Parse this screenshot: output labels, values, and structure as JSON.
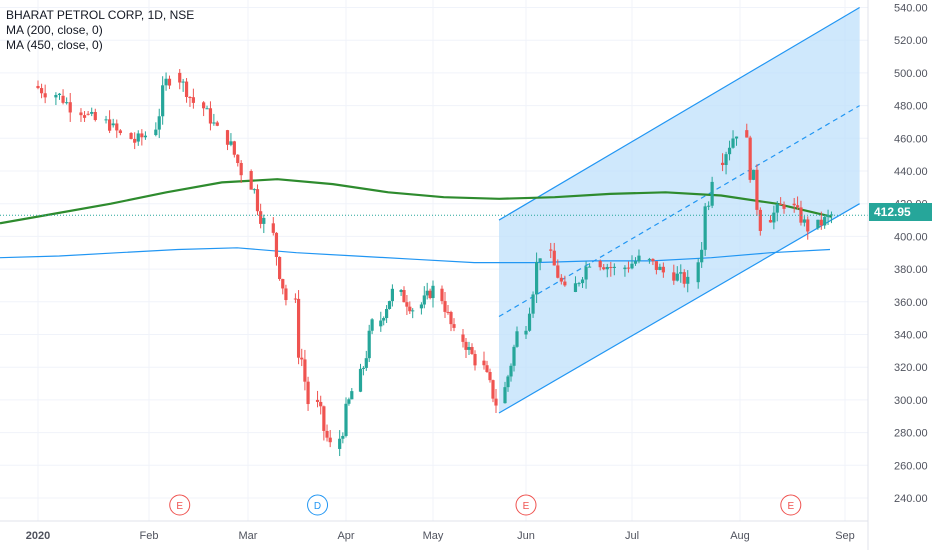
{
  "legend": {
    "title": "BHARAT PETROL CORP, 1D, NSE",
    "ma1": "MA (200, close, 0)",
    "ma2": "MA (450, close, 0)"
  },
  "price_tag": "412.95",
  "colors": {
    "up": "#26a69a",
    "down": "#ef5350",
    "ma200": "#2e8b2e",
    "ma450": "#2196f3",
    "channel": "#2196f3",
    "channel_fill": "#bbdefb",
    "price_line": "#26a69a"
  },
  "chart_data": {
    "type": "candlestick",
    "title": "BHARAT PETROL CORP, 1D, NSE",
    "y_ticks": [
      "240.00",
      "260.00",
      "280.00",
      "300.00",
      "320.00",
      "340.00",
      "360.00",
      "380.00",
      "400.00",
      "420.00",
      "440.00",
      "460.00",
      "480.00",
      "500.00",
      "520.00",
      "540.00"
    ],
    "x_ticks": [
      "2020",
      "Feb",
      "Mar",
      "Apr",
      "May",
      "Jun",
      "Jul",
      "Aug",
      "Sep"
    ],
    "ylim": [
      228,
      540
    ],
    "last_price": 412.95,
    "candles_approx": [
      {
        "date": "2020-01-01",
        "o": 492,
        "h": 497,
        "l": 478,
        "c": 486
      },
      {
        "date": "2020-01-08",
        "o": 486,
        "h": 492,
        "l": 470,
        "c": 475
      },
      {
        "date": "2020-01-15",
        "o": 475,
        "h": 480,
        "l": 462,
        "c": 468
      },
      {
        "date": "2020-01-22",
        "o": 468,
        "h": 472,
        "l": 452,
        "c": 458
      },
      {
        "date": "2020-01-29",
        "o": 458,
        "h": 466,
        "l": 448,
        "c": 462
      },
      {
        "date": "2020-02-03",
        "o": 462,
        "h": 510,
        "l": 445,
        "c": 500
      },
      {
        "date": "2020-02-10",
        "o": 500,
        "h": 505,
        "l": 478,
        "c": 482
      },
      {
        "date": "2020-02-17",
        "o": 482,
        "h": 486,
        "l": 460,
        "c": 465
      },
      {
        "date": "2020-02-24",
        "o": 465,
        "h": 470,
        "l": 432,
        "c": 440
      },
      {
        "date": "2020-03-02",
        "o": 440,
        "h": 455,
        "l": 400,
        "c": 408
      },
      {
        "date": "2020-03-09",
        "o": 408,
        "h": 412,
        "l": 350,
        "c": 362
      },
      {
        "date": "2020-03-16",
        "o": 362,
        "h": 395,
        "l": 275,
        "c": 300
      },
      {
        "date": "2020-03-23",
        "o": 300,
        "h": 318,
        "l": 252,
        "c": 270
      },
      {
        "date": "2020-03-30",
        "o": 270,
        "h": 312,
        "l": 258,
        "c": 305
      },
      {
        "date": "2020-04-06",
        "o": 305,
        "h": 350,
        "l": 298,
        "c": 345
      },
      {
        "date": "2020-04-13",
        "o": 345,
        "h": 372,
        "l": 340,
        "c": 366
      },
      {
        "date": "2020-04-20",
        "o": 366,
        "h": 372,
        "l": 350,
        "c": 356
      },
      {
        "date": "2020-04-27",
        "o": 356,
        "h": 373,
        "l": 352,
        "c": 368
      },
      {
        "date": "2020-05-04",
        "o": 368,
        "h": 370,
        "l": 335,
        "c": 340
      },
      {
        "date": "2020-05-11",
        "o": 340,
        "h": 348,
        "l": 318,
        "c": 324
      },
      {
        "date": "2020-05-18",
        "o": 324,
        "h": 330,
        "l": 292,
        "c": 298
      },
      {
        "date": "2020-05-25",
        "o": 298,
        "h": 345,
        "l": 296,
        "c": 340
      },
      {
        "date": "2020-06-01",
        "o": 340,
        "h": 400,
        "l": 335,
        "c": 392
      },
      {
        "date": "2020-06-08",
        "o": 392,
        "h": 396,
        "l": 360,
        "c": 366
      },
      {
        "date": "2020-06-15",
        "o": 366,
        "h": 390,
        "l": 356,
        "c": 385
      },
      {
        "date": "2020-06-22",
        "o": 385,
        "h": 395,
        "l": 372,
        "c": 380
      },
      {
        "date": "2020-06-29",
        "o": 380,
        "h": 392,
        "l": 370,
        "c": 386
      },
      {
        "date": "2020-07-06",
        "o": 386,
        "h": 392,
        "l": 372,
        "c": 378
      },
      {
        "date": "2020-07-13",
        "o": 378,
        "h": 384,
        "l": 360,
        "c": 372
      },
      {
        "date": "2020-07-20",
        "o": 372,
        "h": 482,
        "l": 368,
        "c": 445
      },
      {
        "date": "2020-07-27",
        "o": 445,
        "h": 478,
        "l": 435,
        "c": 465
      },
      {
        "date": "2020-08-03",
        "o": 465,
        "h": 470,
        "l": 400,
        "c": 410
      },
      {
        "date": "2020-08-10",
        "o": 410,
        "h": 432,
        "l": 398,
        "c": 420
      },
      {
        "date": "2020-08-17",
        "o": 420,
        "h": 425,
        "l": 398,
        "c": 405
      },
      {
        "date": "2020-08-24",
        "o": 405,
        "h": 418,
        "l": 404,
        "c": 412.95
      }
    ],
    "series": [
      {
        "name": "MA (200, close, 0)",
        "values_approx": [
          408,
          414,
          420,
          427,
          433,
          435,
          432,
          427,
          424,
          423,
          424,
          426,
          427,
          425,
          420,
          412
        ]
      },
      {
        "name": "MA (450, close, 0)",
        "values_approx": [
          387,
          388,
          390,
          392,
          393,
          390,
          388,
          386,
          384,
          384,
          385,
          385,
          387,
          390,
          392
        ]
      }
    ],
    "events": [
      {
        "label": "E",
        "date": "2020-02-10"
      },
      {
        "label": "D",
        "date": "2020-03-23"
      },
      {
        "label": "E",
        "date": "2020-06-01"
      },
      {
        "label": "E",
        "date": "2020-08-16"
      }
    ]
  }
}
